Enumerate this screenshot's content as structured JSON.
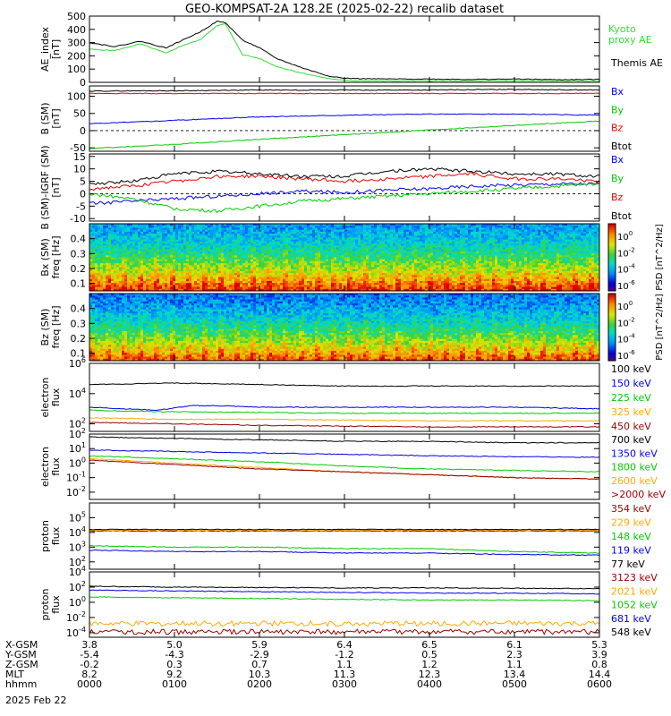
{
  "title": "GEO-KOMPSAT-2A 128.2E (2025-02-22) recalib dataset",
  "colors": {
    "black": "#000000",
    "blue": "#0000ee",
    "green": "#00cc00",
    "red": "#ee0000",
    "orange": "#ffaa00",
    "darkred": "#990000",
    "lightgreen": "#33ee33",
    "kyoto": "#33dd33"
  },
  "time_axis": {
    "labels": [
      "0000",
      "0100",
      "0200",
      "0300",
      "0400",
      "0500",
      "0600"
    ],
    "date": "2025 Feb 22",
    "rows": [
      {
        "name": "X-GSM",
        "values": [
          "3.8",
          "5.0",
          "5.9",
          "6.4",
          "6.5",
          "6.1",
          "5.3"
        ]
      },
      {
        "name": "Y-GSM",
        "values": [
          "-5.4",
          "-4.3",
          "-2.9",
          "-1.2",
          "0.5",
          "2.3",
          "3.9"
        ]
      },
      {
        "name": "Z-GSM",
        "values": [
          "-0.2",
          "0.3",
          "0.7",
          "1.1",
          "1.2",
          "1.1",
          "0.8"
        ]
      },
      {
        "name": "MLT",
        "values": [
          "8.2",
          "9.2",
          "10.3",
          "11.3",
          "12.3",
          "13.4",
          "14.4"
        ]
      },
      {
        "name": "hhmm",
        "values": [
          "0000",
          "0100",
          "0200",
          "0300",
          "0400",
          "0500",
          "0600"
        ]
      }
    ]
  },
  "chart_data": [
    {
      "type": "line",
      "id": "ae",
      "ylabel": "AE_index [nT]",
      "ylim": [
        0,
        500
      ],
      "yticks": [
        "0",
        "100",
        "200",
        "300",
        "400",
        "500"
      ],
      "ytick_values": [
        0,
        100,
        200,
        300,
        400,
        500
      ],
      "series": [
        {
          "name": "Kyoto proxy AE",
          "color": "#33dd33",
          "x": [
            0,
            0.3,
            0.6,
            0.9,
            1.1,
            1.3,
            1.5,
            1.6,
            1.8,
            2.0,
            2.2,
            2.5,
            2.8,
            3.0,
            3.5,
            4.0,
            4.5,
            5.0,
            5.5,
            6.0
          ],
          "y": [
            250,
            240,
            290,
            220,
            280,
            320,
            430,
            440,
            210,
            180,
            120,
            70,
            30,
            15,
            10,
            10,
            10,
            12,
            10,
            10
          ]
        },
        {
          "name": "Themis AE",
          "color": "#000000",
          "x": [
            0,
            0.3,
            0.6,
            0.9,
            1.1,
            1.3,
            1.5,
            1.6,
            1.8,
            2.0,
            2.2,
            2.5,
            2.8,
            3.0,
            3.5,
            4.0,
            4.5,
            5.0,
            5.5,
            6.0
          ],
          "y": [
            300,
            270,
            310,
            260,
            320,
            380,
            460,
            450,
            320,
            260,
            180,
            110,
            50,
            30,
            25,
            25,
            22,
            25,
            20,
            22
          ]
        }
      ],
      "legend": [
        "Kyoto proxy AE",
        "Themis AE"
      ]
    },
    {
      "type": "line",
      "id": "b_sm",
      "ylabel": "B (SM) [nT]",
      "ylim": [
        -60,
        130
      ],
      "yticks": [
        "-50",
        "0",
        "50",
        "100"
      ],
      "ytick_values": [
        -50,
        0,
        50,
        100
      ],
      "series": [
        {
          "name": "Bx",
          "color": "#0000ee",
          "x": [
            0,
            1,
            2,
            3,
            4,
            5,
            6
          ],
          "y": [
            20,
            30,
            40,
            45,
            48,
            48,
            45
          ]
        },
        {
          "name": "By",
          "color": "#00cc00",
          "x": [
            0,
            1,
            2,
            3,
            4,
            5,
            6
          ],
          "y": [
            -52,
            -40,
            -25,
            -12,
            2,
            15,
            28
          ]
        },
        {
          "name": "Bz",
          "color": "#ee0000",
          "x": [
            0,
            1,
            2,
            3,
            4,
            5,
            6
          ],
          "y": [
            108,
            108,
            108,
            108,
            108,
            108,
            108
          ]
        },
        {
          "name": "Btot",
          "color": "#000000",
          "x": [
            0,
            1,
            2,
            3,
            4,
            5,
            6
          ],
          "y": [
            115,
            116,
            118,
            118,
            118,
            120,
            118
          ]
        }
      ],
      "legend": [
        "Bx",
        "By",
        "Bz",
        "Btot"
      ]
    },
    {
      "type": "line",
      "id": "b_igrf",
      "ylabel": "B (SM)-IGRF (SM) [nT]",
      "ylim": [
        -11,
        16
      ],
      "yticks": [
        "-10",
        "-5",
        "0",
        "5",
        "10",
        "15"
      ],
      "ytick_values": [
        -10,
        -5,
        0,
        5,
        10,
        15
      ],
      "series": [
        {
          "name": "Bx",
          "color": "#0000ee",
          "x": [
            0,
            0.5,
            1,
            1.5,
            2,
            2.5,
            3,
            3.5,
            4,
            4.5,
            5,
            5.5,
            6
          ],
          "y": [
            -4,
            -3,
            -2,
            -1,
            0,
            1,
            0.5,
            1.5,
            2,
            3,
            3.5,
            4,
            4
          ]
        },
        {
          "name": "By",
          "color": "#00cc00",
          "x": [
            0,
            0.5,
            1,
            1.5,
            2,
            2.5,
            3,
            3.5,
            4,
            4.5,
            5,
            5.5,
            6
          ],
          "y": [
            0,
            -2,
            -6,
            -7,
            -5,
            -3,
            -2,
            -1,
            0,
            1,
            2,
            3,
            4
          ]
        },
        {
          "name": "Bz",
          "color": "#ee0000",
          "x": [
            0,
            0.5,
            1,
            1.5,
            2,
            2.5,
            3,
            3.5,
            4,
            4.5,
            5,
            5.5,
            6
          ],
          "y": [
            2,
            3,
            5,
            7,
            7,
            6,
            5,
            6,
            7,
            8,
            6,
            6,
            5
          ]
        },
        {
          "name": "Btot",
          "color": "#000000",
          "x": [
            0,
            0.5,
            1,
            1.5,
            2,
            2.5,
            3,
            3.5,
            4,
            4.5,
            5,
            5.5,
            6
          ],
          "y": [
            4,
            5,
            8,
            9,
            8,
            7,
            7,
            9,
            10,
            9,
            8,
            8,
            7
          ]
        }
      ],
      "legend": [
        "Bx",
        "By",
        "Bz",
        "Btot"
      ]
    },
    {
      "type": "heatmap",
      "id": "bx_psd",
      "ylabel": "Bx (SM) freq [Hz]",
      "ylim": [
        0.05,
        0.5
      ],
      "yticks": [
        "0.1",
        "0.2",
        "0.3",
        "0.4"
      ],
      "ytick_values": [
        0.1,
        0.2,
        0.3,
        0.4
      ],
      "colorbar_label": "PSD [nT^2/Hz]",
      "colorbar_ticks": [
        "10^0",
        "10^-2",
        "10^-4",
        "10^-6"
      ]
    },
    {
      "type": "heatmap",
      "id": "bz_psd",
      "ylabel": "Bz (SM) freq [Hz]",
      "ylim": [
        0.05,
        0.5
      ],
      "yticks": [
        "0.1",
        "0.2",
        "0.3",
        "0.4"
      ],
      "ytick_values": [
        0.1,
        0.2,
        0.3,
        0.4
      ],
      "colorbar_label": "PSD [nT^2/Hz]",
      "colorbar_ticks": [
        "10^0",
        "10^-2",
        "10^-4",
        "10^-6"
      ]
    },
    {
      "type": "line",
      "id": "electron_low",
      "log": true,
      "ylabel": "electron flux",
      "ylim_exp": [
        1.5,
        6
      ],
      "yticks": [
        "10^2",
        "10^4",
        "10^6"
      ],
      "ytick_values": [
        2,
        4,
        6
      ],
      "series": [
        {
          "name": "100 keV",
          "color": "#000000",
          "x": [
            0,
            1,
            2,
            3,
            4,
            5,
            6
          ],
          "y": [
            4.6,
            4.7,
            4.6,
            4.5,
            4.5,
            4.5,
            4.5
          ]
        },
        {
          "name": "150 keV",
          "color": "#0000ee",
          "x": [
            0,
            0.8,
            1.2,
            1.5,
            2,
            3,
            4,
            5,
            6
          ],
          "y": [
            3.1,
            2.9,
            3.2,
            3.2,
            3.1,
            3.1,
            3.1,
            3.1,
            3.0
          ]
        },
        {
          "name": "225 keV",
          "color": "#00cc00",
          "x": [
            0,
            0.8,
            1,
            2,
            3,
            4,
            5,
            6
          ],
          "y": [
            2.9,
            2.8,
            2.8,
            2.75,
            2.7,
            2.7,
            2.7,
            2.7
          ]
        },
        {
          "name": "325 keV",
          "color": "#ffaa00",
          "x": [
            0,
            1,
            2,
            3,
            4,
            5,
            6
          ],
          "y": [
            2.4,
            2.3,
            2.3,
            2.25,
            2.2,
            2.2,
            2.2
          ]
        },
        {
          "name": "450 keV",
          "color": "#990000",
          "x": [
            0,
            1,
            2,
            3,
            4,
            5,
            6
          ],
          "y": [
            2.1,
            2.0,
            1.9,
            1.85,
            1.8,
            1.8,
            1.8
          ]
        }
      ],
      "legend": [
        "100 keV",
        "150 keV",
        "225 keV",
        "325 keV",
        "450 keV"
      ]
    },
    {
      "type": "line",
      "id": "electron_high",
      "log": true,
      "ylabel": "electron flux",
      "ylim_exp": [
        -2.5,
        2
      ],
      "yticks": [
        "10^-2",
        "10^-1",
        "10^0",
        "10^1",
        "10^2"
      ],
      "ytick_values": [
        -2,
        -1,
        0,
        1,
        2
      ],
      "series": [
        {
          "name": "700 keV",
          "color": "#000000",
          "x": [
            0,
            1,
            2,
            3,
            4,
            5,
            6
          ],
          "y": [
            1.8,
            1.7,
            1.6,
            1.5,
            1.5,
            1.4,
            1.4
          ]
        },
        {
          "name": "1350 keV",
          "color": "#0000ee",
          "x": [
            0,
            1,
            2,
            3,
            4,
            5,
            6
          ],
          "y": [
            0.9,
            0.8,
            0.7,
            0.6,
            0.5,
            0.45,
            0.4
          ]
        },
        {
          "name": "1800 keV",
          "color": "#00cc00",
          "x": [
            0,
            1,
            2,
            3,
            4,
            5,
            6
          ],
          "y": [
            0.5,
            0.3,
            0.1,
            -0.2,
            -0.4,
            -0.5,
            -0.6
          ]
        },
        {
          "name": "2600 keV",
          "color": "#ffaa00",
          "x": [
            0,
            1,
            2,
            3,
            4,
            5,
            6
          ],
          "y": [
            0.3,
            0,
            -0.3,
            -0.6,
            -0.8,
            -1,
            -1.1
          ]
        },
        {
          "name": ">2000 keV",
          "color": "#990000",
          "x": [
            0,
            1,
            2,
            3,
            4,
            5,
            6
          ],
          "y": [
            0.2,
            -0.1,
            -0.4,
            -0.6,
            -0.8,
            -1,
            -1.1
          ]
        }
      ],
      "legend": [
        "700 keV",
        "1350 keV",
        "1800 keV",
        "2600 keV",
        ">2000 keV"
      ]
    },
    {
      "type": "line",
      "id": "proton_low",
      "log": true,
      "ylabel": "proton flux",
      "ylim_exp": [
        1.5,
        6
      ],
      "yticks": [
        "10^2",
        "10^3",
        "10^4",
        "10^5"
      ],
      "ytick_values": [
        2,
        3,
        4,
        5
      ],
      "series": [
        {
          "name": "354 keV",
          "color": "#990000",
          "x": [
            0,
            1,
            2,
            3,
            4,
            5,
            6
          ],
          "y": [
            4.1,
            4.1,
            4.1,
            4.1,
            4.1,
            4.1,
            4.1
          ]
        },
        {
          "name": "229 keV",
          "color": "#ffaa00",
          "x": [
            0,
            1,
            2,
            3,
            4,
            5,
            6
          ],
          "y": [
            4.15,
            4.15,
            4.15,
            4.15,
            4.15,
            4.15,
            4.15
          ]
        },
        {
          "name": "148 keV",
          "color": "#00cc00",
          "x": [
            0,
            1,
            2,
            3,
            4,
            5,
            6
          ],
          "y": [
            3.1,
            3.0,
            3.0,
            2.9,
            2.9,
            2.7,
            2.6
          ]
        },
        {
          "name": "119 keV",
          "color": "#0000ee",
          "x": [
            0,
            1,
            2,
            3,
            4,
            5,
            6
          ],
          "y": [
            2.8,
            2.7,
            2.7,
            2.6,
            2.6,
            2.5,
            2.45
          ]
        },
        {
          "name": "77 keV",
          "color": "#000000",
          "x": [
            0,
            1,
            2,
            3,
            4,
            5,
            6
          ],
          "y": [
            4.2,
            4.2,
            4.2,
            4.2,
            4.2,
            4.2,
            4.2
          ]
        }
      ],
      "legend": [
        "354 keV",
        "229 keV",
        "148 keV",
        "119 keV",
        "77 keV"
      ]
    },
    {
      "type": "line",
      "id": "proton_high",
      "log": true,
      "ylabel": "proton flux",
      "ylim_exp": [
        -4.6,
        4
      ],
      "yticks": [
        "10^-4",
        "10^-2",
        "10^0",
        "10^2",
        "10^4"
      ],
      "ytick_values": [
        -4,
        -2,
        0,
        2,
        4
      ],
      "series": [
        {
          "name": "3123 keV",
          "color": "#990000",
          "x": [
            0,
            1,
            2,
            3,
            4,
            5,
            6
          ],
          "y": [
            -3.9,
            -3.9,
            -3.9,
            -3.9,
            -3.9,
            -3.9,
            -3.9
          ]
        },
        {
          "name": "2021 keV",
          "color": "#ffaa00",
          "x": [
            0,
            1,
            2,
            3,
            4,
            5,
            6
          ],
          "y": [
            -2.8,
            -2.8,
            -2.8,
            -2.8,
            -2.8,
            -2.8,
            -2.8
          ]
        },
        {
          "name": "1052 keV",
          "color": "#00cc00",
          "x": [
            0,
            1,
            2,
            3,
            4,
            5,
            6
          ],
          "y": [
            0.7,
            0.6,
            0.5,
            0.4,
            0.3,
            0.3,
            0.2
          ]
        },
        {
          "name": "681 keV",
          "color": "#0000ee",
          "x": [
            0,
            1,
            2,
            3,
            4,
            5,
            6
          ],
          "y": [
            1.6,
            1.5,
            1.4,
            1.3,
            1.2,
            1.2,
            1.1
          ]
        },
        {
          "name": "548 keV",
          "color": "#000000",
          "x": [
            0,
            1,
            2,
            3,
            4,
            5,
            6
          ],
          "y": [
            2.1,
            2.0,
            1.95,
            1.9,
            1.9,
            1.85,
            1.8
          ]
        }
      ],
      "legend": [
        "3123 keV",
        "2021 keV",
        "1052 keV",
        "681 keV",
        "548 keV"
      ]
    }
  ]
}
